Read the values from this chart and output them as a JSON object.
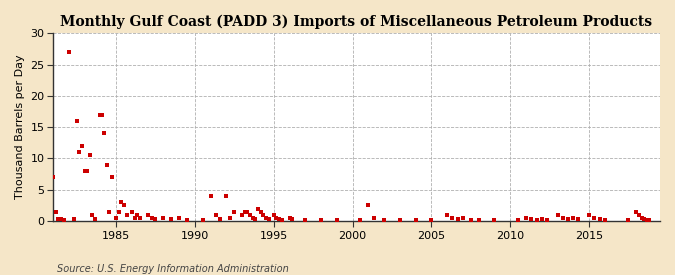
{
  "title": "Monthly Gulf Coast (PADD 3) Imports of Miscellaneous Petroleum Products",
  "ylabel": "Thousand Barrels per Day",
  "source": "Source: U.S. Energy Information Administration",
  "background_color": "#f5e6c8",
  "plot_bg_color": "#ffffff",
  "dot_color": "#cc0000",
  "ylim": [
    0,
    30
  ],
  "yticks": [
    0,
    5,
    10,
    15,
    20,
    25,
    30
  ],
  "xlim_start": 1981.0,
  "xlim_end": 2019.5,
  "xticks": [
    1985,
    1990,
    1995,
    2000,
    2005,
    2010,
    2015
  ],
  "title_fontsize": 10,
  "tick_fontsize": 8,
  "ylabel_fontsize": 8,
  "source_fontsize": 7,
  "scatter_s": 8,
  "scatter_x": [
    1981.0,
    1981.17,
    1981.33,
    1981.5,
    1981.67,
    1982.0,
    1982.33,
    1982.5,
    1982.67,
    1982.83,
    1983.0,
    1983.17,
    1983.33,
    1983.5,
    1983.67,
    1984.0,
    1984.08,
    1984.25,
    1984.42,
    1984.58,
    1984.75,
    1985.0,
    1985.17,
    1985.33,
    1985.5,
    1985.67,
    1986.0,
    1986.17,
    1986.33,
    1986.5,
    1987.0,
    1987.25,
    1987.5,
    1988.0,
    1988.5,
    1989.0,
    1989.5,
    1990.5,
    1991.0,
    1991.33,
    1991.58,
    1992.0,
    1992.25,
    1992.5,
    1993.0,
    1993.17,
    1993.33,
    1993.5,
    1993.67,
    1993.83,
    1994.0,
    1994.17,
    1994.33,
    1994.5,
    1994.67,
    1995.0,
    1995.17,
    1995.33,
    1995.5,
    1996.0,
    1996.17,
    1997.0,
    1998.0,
    1999.0,
    2000.5,
    2001.0,
    2001.33,
    2002.0,
    2003.0,
    2004.0,
    2005.0,
    2006.0,
    2006.33,
    2006.67,
    2007.0,
    2007.5,
    2008.0,
    2009.0,
    2010.5,
    2011.0,
    2011.33,
    2011.67,
    2012.0,
    2012.33,
    2013.0,
    2013.33,
    2013.67,
    2014.0,
    2014.33,
    2015.0,
    2015.33,
    2015.67,
    2016.0,
    2017.5,
    2018.0,
    2018.17,
    2018.33,
    2018.5,
    2018.67,
    2018.83
  ],
  "scatter_y": [
    7.0,
    1.5,
    0.4,
    0.3,
    0.2,
    27.0,
    0.3,
    16.0,
    11.0,
    12.0,
    8.0,
    8.0,
    10.5,
    1.0,
    0.4,
    17.0,
    17.0,
    14.0,
    9.0,
    1.5,
    7.0,
    0.5,
    1.5,
    3.0,
    2.5,
    1.0,
    1.5,
    0.5,
    1.0,
    0.5,
    1.0,
    0.5,
    0.3,
    0.5,
    0.3,
    0.5,
    0.2,
    0.2,
    4.0,
    1.0,
    0.4,
    4.0,
    0.5,
    1.5,
    1.0,
    1.5,
    1.5,
    1.0,
    0.5,
    0.3,
    2.0,
    1.5,
    1.0,
    0.5,
    0.3,
    1.0,
    0.5,
    0.3,
    0.2,
    0.5,
    0.3,
    0.2,
    0.1,
    0.1,
    0.1,
    2.5,
    0.5,
    0.1,
    0.1,
    0.1,
    0.1,
    1.0,
    0.5,
    0.3,
    0.5,
    0.2,
    0.1,
    0.1,
    0.1,
    0.5,
    0.3,
    0.2,
    0.3,
    0.2,
    1.0,
    0.5,
    0.3,
    0.5,
    0.3,
    1.0,
    0.5,
    0.3,
    0.2,
    0.2,
    1.5,
    1.0,
    0.5,
    0.3,
    0.2,
    0.1
  ]
}
